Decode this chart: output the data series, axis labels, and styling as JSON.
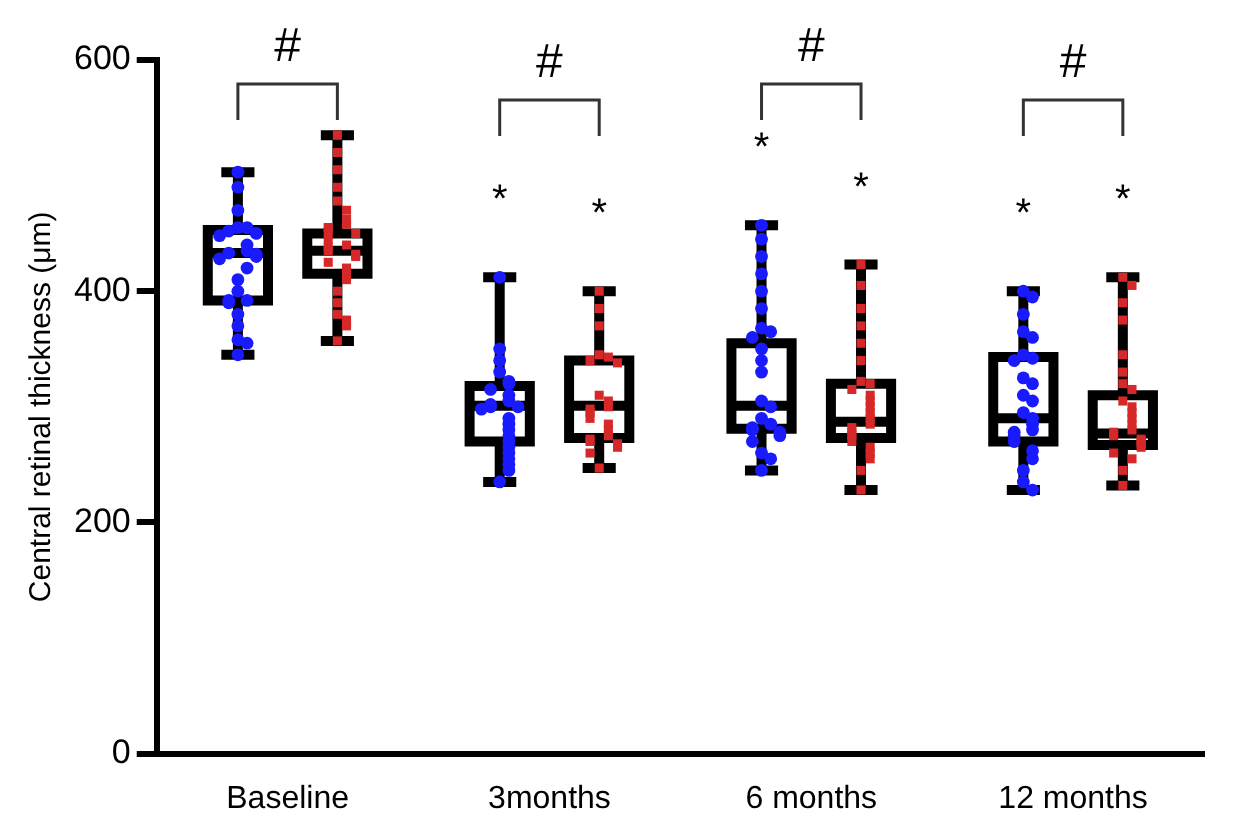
{
  "chart_data": {
    "type": "box",
    "ylabel": "Central retinal thickness (μm)",
    "categories": [
      "Baseline",
      "3months",
      "6 months",
      "12 months"
    ],
    "ylim": [
      0,
      600
    ],
    "yticks": [
      0,
      200,
      400,
      600
    ],
    "grid": false,
    "legend": false,
    "series": [
      {
        "color": "#000000",
        "boxes": [
          {
            "low": 345,
            "q1": 392,
            "median": 433,
            "q3": 453,
            "high": 503
          },
          {
            "low": 235,
            "q1": 270,
            "median": 301,
            "q3": 318,
            "high": 412
          },
          {
            "low": 245,
            "q1": 281,
            "median": 301,
            "q3": 355,
            "high": 457
          },
          {
            "low": 228,
            "q1": 270,
            "median": 290,
            "q3": 343,
            "high": 400
          }
        ]
      },
      {
        "color": "#000000",
        "boxes": [
          {
            "low": 357,
            "q1": 415,
            "median": 435,
            "q3": 450,
            "high": 535
          },
          {
            "low": 247,
            "q1": 273,
            "median": 301,
            "q3": 340,
            "high": 400
          },
          {
            "low": 228,
            "q1": 273,
            "median": 287,
            "q3": 320,
            "high": 423
          },
          {
            "low": 232,
            "q1": 267,
            "median": 277,
            "q3": 310,
            "high": 412
          }
        ]
      },
      {
        "type": "scatter",
        "color": "#1a1aff",
        "marker": "circle",
        "x": [
          "Baseline",
          "Baseline",
          "Baseline",
          "Baseline",
          "Baseline",
          "Baseline",
          "Baseline",
          "Baseline",
          "Baseline",
          "Baseline",
          "Baseline",
          "Baseline",
          "Baseline",
          "Baseline",
          "Baseline",
          "Baseline",
          "Baseline",
          "Baseline",
          "Baseline",
          "Baseline",
          "Baseline",
          "Baseline",
          "Baseline",
          "Baseline",
          "Baseline",
          "3months",
          "3months",
          "3months",
          "3months",
          "3months",
          "3months",
          "3months",
          "3months",
          "3months",
          "3months",
          "3months",
          "3months",
          "3months",
          "3months",
          "3months",
          "3months",
          "3months",
          "3months",
          "3months",
          "3months",
          "3months",
          "3months",
          "3months",
          "3months",
          "6 months",
          "6 months",
          "6 months",
          "6 months",
          "6 months",
          "6 months",
          "6 months",
          "6 months",
          "6 months",
          "6 months",
          "6 months",
          "6 months",
          "6 months",
          "6 months",
          "6 months",
          "6 months",
          "6 months",
          "6 months",
          "6 months",
          "6 months",
          "6 months",
          "6 months",
          "6 months",
          "6 months",
          "12 months",
          "12 months",
          "12 months",
          "12 months",
          "12 months",
          "12 months",
          "12 months",
          "12 months",
          "12 months",
          "12 months",
          "12 months",
          "12 months",
          "12 months",
          "12 months",
          "12 months",
          "12 months",
          "12 months",
          "12 months",
          "12 months",
          "12 months",
          "12 months",
          "12 months",
          "12 months",
          "12 months"
        ],
        "values": [
          503,
          490,
          470,
          455,
          455,
          452,
          450,
          448,
          440,
          435,
          433,
          432,
          430,
          428,
          420,
          410,
          400,
          392,
          392,
          390,
          380,
          370,
          358,
          355,
          345,
          412,
          350,
          340,
          330,
          322,
          320,
          315,
          310,
          305,
          302,
          300,
          300,
          298,
          290,
          285,
          280,
          275,
          270,
          265,
          260,
          255,
          250,
          245,
          235,
          457,
          445,
          430,
          415,
          400,
          385,
          368,
          365,
          360,
          350,
          340,
          330,
          305,
          300,
          290,
          285,
          282,
          280,
          278,
          275,
          270,
          260,
          255,
          245,
          400,
          395,
          380,
          365,
          360,
          345,
          342,
          340,
          325,
          320,
          310,
          305,
          295,
          290,
          285,
          280,
          278,
          275,
          270,
          262,
          255,
          245,
          235,
          228
        ]
      },
      {
        "type": "scatter",
        "color": "#d62828",
        "marker": "square",
        "x": [
          "Baseline",
          "Baseline",
          "Baseline",
          "Baseline",
          "Baseline",
          "Baseline",
          "Baseline",
          "Baseline",
          "Baseline",
          "Baseline",
          "Baseline",
          "Baseline",
          "Baseline",
          "Baseline",
          "Baseline",
          "Baseline",
          "Baseline",
          "Baseline",
          "Baseline",
          "Baseline",
          "Baseline",
          "Baseline",
          "Baseline",
          "Baseline",
          "Baseline",
          "Baseline",
          "Baseline",
          "3months",
          "3months",
          "3months",
          "3months",
          "3months",
          "3months",
          "3months",
          "3months",
          "3months",
          "3months",
          "3months",
          "3months",
          "3months",
          "3months",
          "3months",
          "3months",
          "3months",
          "3months",
          "3months",
          "3months",
          "3months",
          "3months",
          "6 months",
          "6 months",
          "6 months",
          "6 months",
          "6 months",
          "6 months",
          "6 months",
          "6 months",
          "6 months",
          "6 months",
          "6 months",
          "6 months",
          "6 months",
          "6 months",
          "6 months",
          "6 months",
          "6 months",
          "6 months",
          "6 months",
          "6 months",
          "6 months",
          "6 months",
          "6 months",
          "6 months",
          "12 months",
          "12 months",
          "12 months",
          "12 months",
          "12 months",
          "12 months",
          "12 months",
          "12 months",
          "12 months",
          "12 months",
          "12 months",
          "12 months",
          "12 months",
          "12 months",
          "12 months",
          "12 months",
          "12 months",
          "12 months",
          "12 months",
          "12 months",
          "12 months",
          "12 months",
          "12 months",
          "12 months"
        ],
        "values": [
          535,
          520,
          505,
          490,
          478,
          470,
          462,
          458,
          455,
          452,
          450,
          445,
          440,
          438,
          435,
          432,
          430,
          425,
          420,
          415,
          410,
          400,
          390,
          380,
          375,
          370,
          357,
          400,
          385,
          370,
          345,
          343,
          340,
          338,
          310,
          305,
          300,
          298,
          295,
          290,
          285,
          280,
          275,
          272,
          270,
          268,
          265,
          260,
          247,
          423,
          405,
          385,
          370,
          355,
          340,
          322,
          320,
          315,
          310,
          305,
          300,
          295,
          290,
          285,
          282,
          278,
          275,
          270,
          265,
          260,
          255,
          245,
          228,
          412,
          405,
          390,
          375,
          345,
          330,
          320,
          315,
          305,
          300,
          295,
          290,
          285,
          280,
          278,
          275,
          272,
          270,
          268,
          265,
          260,
          255,
          245,
          232
        ]
      }
    ],
    "annotations": [
      "#",
      "#",
      "#",
      "#",
      "*",
      "*",
      "*",
      "*",
      "*",
      "*"
    ]
  }
}
